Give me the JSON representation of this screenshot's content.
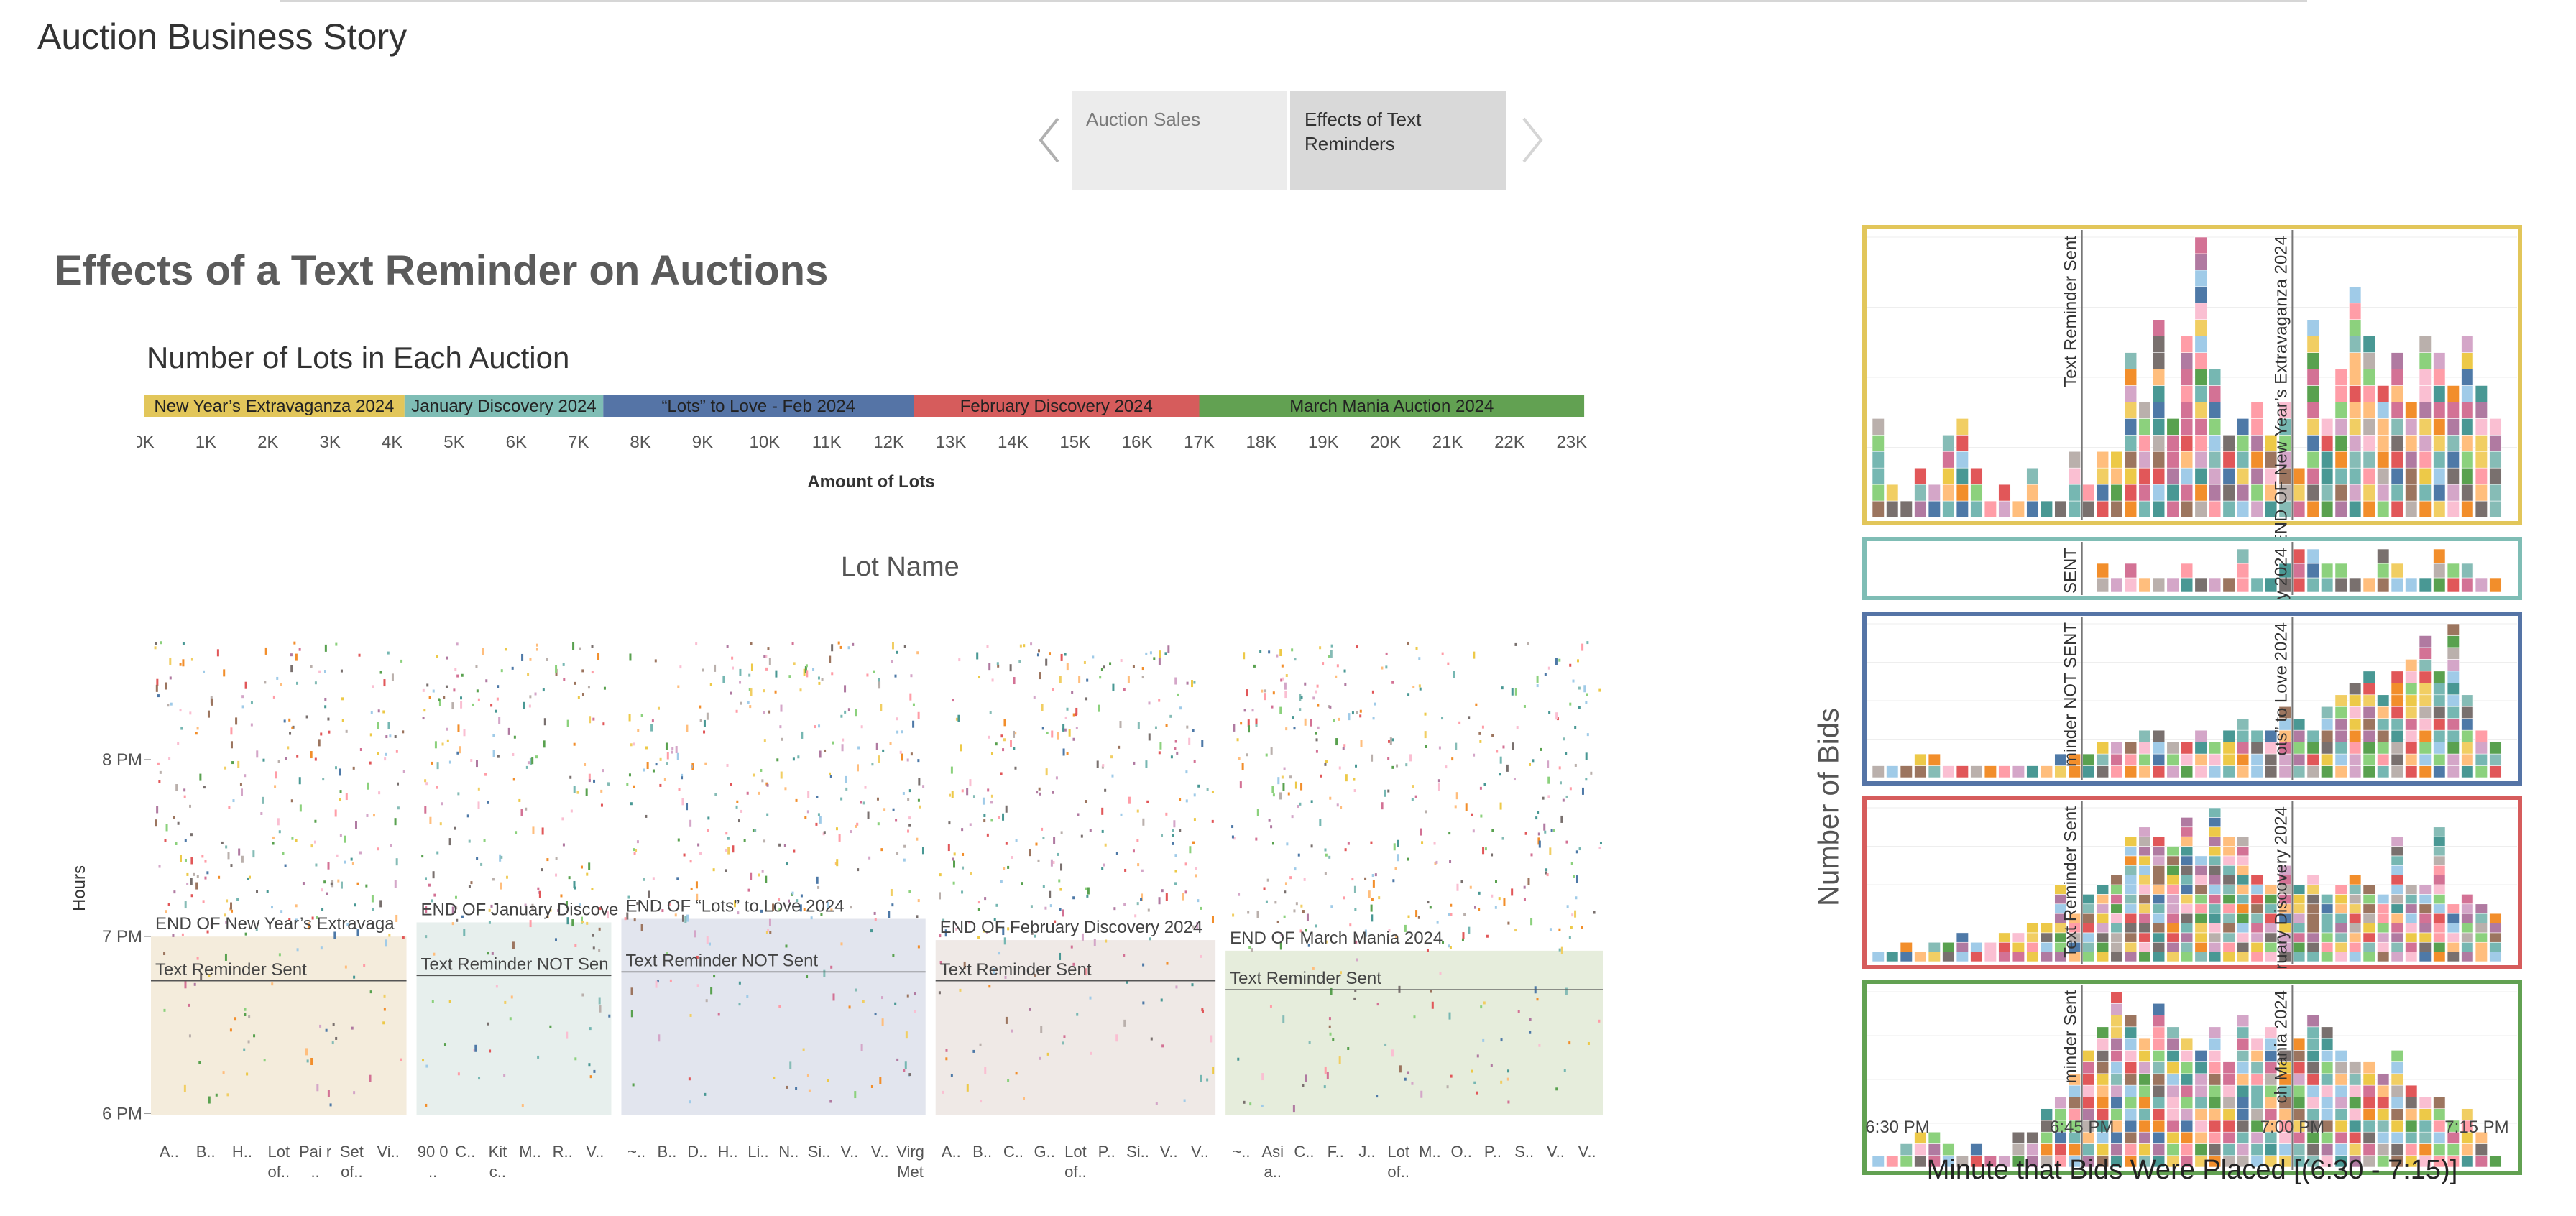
{
  "story": {
    "title": "Auction Business Story",
    "tabs": [
      {
        "label": "Auction Sales",
        "active": false
      },
      {
        "label": "Effects of Text Reminders",
        "active": true
      }
    ]
  },
  "dashboard": {
    "title": "Effects of a Text Reminder on Auctions"
  },
  "colors": {
    "new_year": "#e2c65a",
    "january": "#7fbdb5",
    "lots_to_love": "#5574a6",
    "february": "#d65c5c",
    "march": "#62a152"
  },
  "chart_data": [
    {
      "type": "bar",
      "title": "Number of Lots in Each Auction",
      "xlabel": "Amount of Lots",
      "ylabel": "",
      "orientation": "horizontal-stacked",
      "xlim": [
        0,
        23500
      ],
      "ticks": [
        "0K",
        "1K",
        "2K",
        "3K",
        "4K",
        "5K",
        "6K",
        "7K",
        "8K",
        "9K",
        "10K",
        "11K",
        "12K",
        "13K",
        "14K",
        "15K",
        "16K",
        "17K",
        "18K",
        "19K",
        "20K",
        "21K",
        "22K",
        "23K"
      ],
      "segments": [
        {
          "name": "New Year’s Extravaganza 2024",
          "value": 4200,
          "color": "#e2c65a"
        },
        {
          "name": "January Discovery 2024",
          "value": 3200,
          "color": "#7fbdb5"
        },
        {
          "name": "“Lots” to Love - Feb 2024",
          "value": 5000,
          "color": "#5574a6"
        },
        {
          "name": "February Discovery 2024",
          "value": 4600,
          "color": "#d65c5c"
        },
        {
          "name": "March Mania Auction 2024",
          "value": 6200,
          "color": "#62a152"
        }
      ]
    },
    {
      "type": "scatter",
      "title": "Lot Name",
      "ylabel": "Hours",
      "yticks": [
        "6 PM",
        "7 PM",
        "8 PM"
      ],
      "panels": [
        {
          "name": "New Year’s Extravaganza 2024",
          "end_label": "END OF New Year’s Extravaga",
          "reminder_label": "Text Reminder Sent",
          "end_time": 7.0,
          "reminder_time": 6.75,
          "shade": "#f4ecdc",
          "x_labels": [
            "A..",
            "B..",
            "H..",
            "Lot of..",
            "Pai r ..",
            "Set of..",
            "Vi.."
          ]
        },
        {
          "name": "January Discovery 2024",
          "end_label": "END OF January Discove",
          "reminder_label": "Text Reminder NOT Sen",
          "end_time": 7.08,
          "reminder_time": 6.78,
          "shade": "#e7efed",
          "x_labels": [
            "90 0 ..",
            "C..",
            "Kit c..",
            "M..",
            "R..",
            "V.."
          ]
        },
        {
          "name": "“Lots” to Love - Feb 2024",
          "end_label": "END OF “Lots” to Love 2024",
          "reminder_label": "Text Reminder NOT Sent",
          "end_time": 7.1,
          "reminder_time": 6.8,
          "shade": "#e2e5ee",
          "x_labels": [
            "~..",
            "B..",
            "D..",
            "H..",
            "Li..",
            "N..",
            "Si..",
            "V..",
            "V..",
            "Virg Met"
          ]
        },
        {
          "name": "February Discovery 2024",
          "end_label": "END OF February Discovery 2024",
          "reminder_label": "Text Reminder Sent",
          "end_time": 6.98,
          "reminder_time": 6.75,
          "shade": "#efe9e6",
          "x_labels": [
            "A..",
            "B..",
            "C..",
            "G..",
            "Lot of..",
            "P..",
            "Si..",
            "V..",
            "V.."
          ]
        },
        {
          "name": "March Mania Auction 2024",
          "end_label": "END OF March Mania 2024",
          "reminder_label": "Text Reminder Sent",
          "end_time": 6.92,
          "reminder_time": 6.7,
          "shade": "#e6eddc",
          "x_labels": [
            "~..",
            "Asi a..",
            "C..",
            "F..",
            "J..",
            "Lot of..",
            "M..",
            "O..",
            "P..",
            "S..",
            "V..",
            "V.."
          ]
        }
      ]
    },
    {
      "type": "bar",
      "title": "",
      "orientation": "vertical-stacked",
      "xlabel": "Minute that Bids Were Placed [(6:30 - 7:15)]",
      "ylabel": "Number of Bids",
      "xticks": [
        "6:30 PM",
        "6:45 PM",
        "7:00 PM",
        "7:15 PM"
      ],
      "panels": [
        {
          "name": "New Year’s Extravaganza 2024",
          "reminder_label": "Text Reminder Sent",
          "end_label": "END OF New Year’s Extravaganza 2024",
          "values": [
            6,
            2,
            1,
            3,
            2,
            5,
            6,
            3,
            1,
            2,
            1,
            3,
            1,
            1,
            4,
            2,
            4,
            4,
            10,
            7,
            12,
            6,
            11,
            17,
            9,
            5,
            6,
            7,
            5,
            7,
            3,
            12,
            6,
            9,
            14,
            11,
            8,
            10,
            7,
            11,
            10,
            8,
            11,
            8,
            6
          ]
        },
        {
          "name": "January Discovery 2024",
          "reminder_label": "SENT",
          "end_label": "y 2024",
          "values": [
            0,
            0,
            0,
            0,
            0,
            0,
            0,
            0,
            0,
            0,
            0,
            0,
            0,
            0,
            0,
            0,
            2,
            1,
            2,
            1,
            1,
            1,
            2,
            1,
            1,
            1,
            3,
            1,
            1,
            2,
            3,
            3,
            2,
            2,
            1,
            1,
            3,
            2,
            1,
            1,
            3,
            2,
            2,
            1,
            1
          ]
        },
        {
          "name": "“Lots” to Love - Feb 2024",
          "reminder_label": "minder NOT SENT",
          "end_label": "ots” to Love 2024",
          "values": [
            1,
            1,
            1,
            2,
            2,
            1,
            1,
            1,
            1,
            1,
            1,
            1,
            1,
            2,
            2,
            2,
            3,
            3,
            3,
            4,
            4,
            3,
            3,
            4,
            3,
            4,
            5,
            4,
            4,
            6,
            5,
            4,
            6,
            7,
            8,
            9,
            7,
            9,
            10,
            12,
            9,
            13,
            7,
            4,
            3
          ]
        },
        {
          "name": "February Discovery 2024",
          "reminder_label": "Text Reminder Sent",
          "end_label": "ruary Discovery 2024",
          "values": [
            1,
            1,
            2,
            1,
            2,
            2,
            3,
            2,
            2,
            3,
            3,
            4,
            4,
            8,
            5,
            7,
            8,
            9,
            13,
            14,
            13,
            12,
            15,
            11,
            16,
            13,
            13,
            9,
            8,
            10,
            8,
            9,
            7,
            8,
            9,
            8,
            7,
            13,
            8,
            8,
            14,
            6,
            7,
            6,
            5
          ]
        },
        {
          "name": "March Mania Auction 2024",
          "reminder_label": "minder Sent",
          "end_label": "ch Mania 2024",
          "values": [
            1,
            1,
            2,
            3,
            3,
            2,
            1,
            2,
            1,
            1,
            3,
            3,
            5,
            6,
            8,
            10,
            12,
            15,
            13,
            11,
            14,
            12,
            11,
            10,
            12,
            9,
            13,
            11,
            12,
            10,
            11,
            13,
            12,
            10,
            9,
            9,
            8,
            10,
            7,
            6,
            6,
            4,
            5,
            3,
            1
          ]
        }
      ]
    }
  ]
}
